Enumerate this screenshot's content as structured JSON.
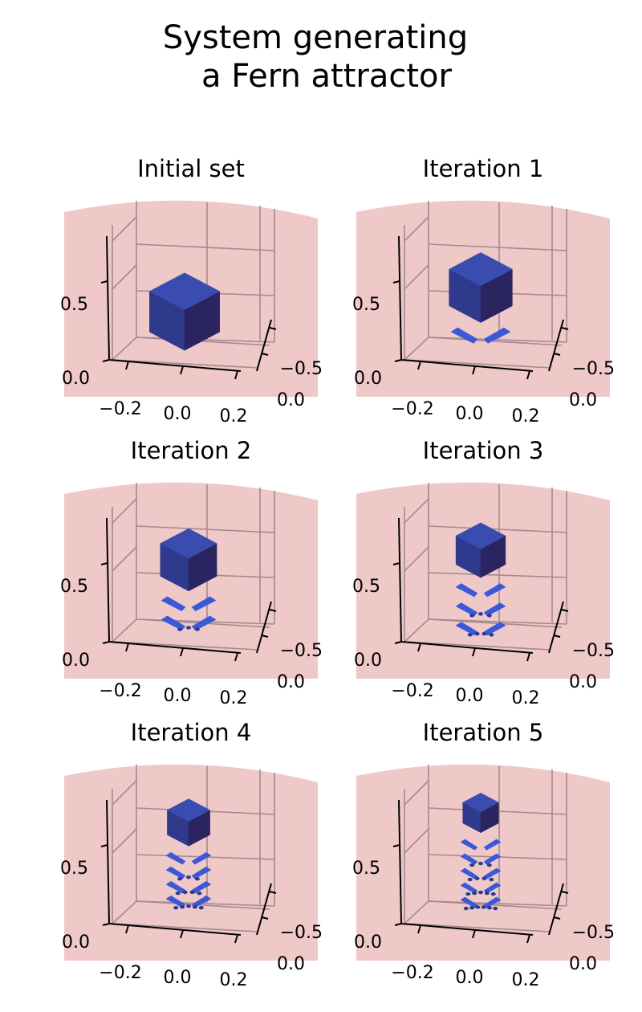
{
  "figure": {
    "title_line1": "System generating",
    "title_line2": "a Fern attractor"
  },
  "colors": {
    "panel_background": "#efc8c8",
    "cube_front": "#2f3a8c",
    "cube_side": "#2a2460",
    "cube_top": "#3a4cb0",
    "leaf": "#3a58d8",
    "grid": "#a38a8e",
    "axis": "#000000"
  },
  "chart_data": [
    {
      "type": "3d-polyhedra",
      "title": "Initial set",
      "iteration": 0,
      "x_ticks": [
        "−0.2",
        "0.0",
        "0.2"
      ],
      "y_ticks": [
        "−0.5",
        "0.0"
      ],
      "z_ticks": [
        "0.0",
        "0.5"
      ],
      "grid": true
    },
    {
      "type": "3d-polyhedra",
      "title": "Iteration 1",
      "iteration": 1,
      "x_ticks": [
        "−0.2",
        "0.0",
        "0.2"
      ],
      "y_ticks": [
        "−0.5",
        "0.0"
      ],
      "z_ticks": [
        "0.0",
        "0.5"
      ],
      "grid": true
    },
    {
      "type": "3d-polyhedra",
      "title": "Iteration 2",
      "iteration": 2,
      "x_ticks": [
        "−0.2",
        "0.0",
        "0.2"
      ],
      "y_ticks": [
        "−0.5",
        "0.0"
      ],
      "z_ticks": [
        "0.0",
        "0.5"
      ],
      "grid": true
    },
    {
      "type": "3d-polyhedra",
      "title": "Iteration 3",
      "iteration": 3,
      "x_ticks": [
        "−0.2",
        "0.0",
        "0.2"
      ],
      "y_ticks": [
        "−0.5",
        "0.0"
      ],
      "z_ticks": [
        "0.0",
        "0.5"
      ],
      "grid": true
    },
    {
      "type": "3d-polyhedra",
      "title": "Iteration 4",
      "iteration": 4,
      "x_ticks": [
        "−0.2",
        "0.0",
        "0.2"
      ],
      "y_ticks": [
        "−0.5",
        "0.0"
      ],
      "z_ticks": [
        "0.0",
        "0.5"
      ],
      "grid": true
    },
    {
      "type": "3d-polyhedra",
      "title": "Iteration 5",
      "iteration": 5,
      "x_ticks": [
        "−0.2",
        "0.0",
        "0.2"
      ],
      "y_ticks": [
        "−0.5",
        "0.0"
      ],
      "z_ticks": [
        "0.0",
        "0.5"
      ],
      "grid": true
    }
  ]
}
